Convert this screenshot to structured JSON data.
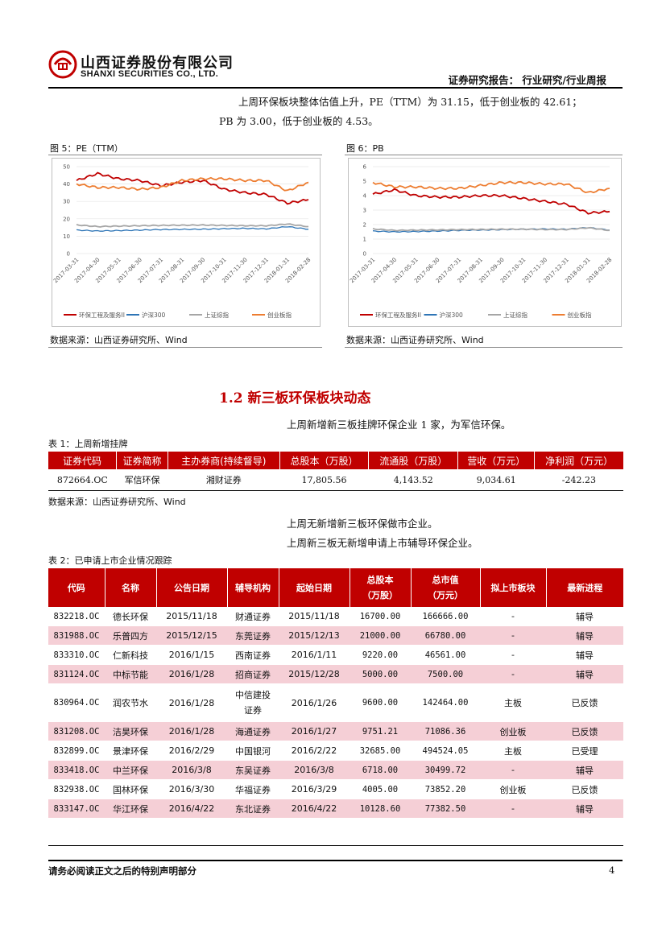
{
  "header": {
    "company_cn": "山西证券股份有限公司",
    "company_en": "SHANXI SECURITIES CO., LTD.",
    "report_type": "证券研究报告：  行业研究/行业周报"
  },
  "intro": {
    "line1": "上周环保板块整体估值上升，PE（TTM）为 31.15，低于创业板的 42.61；",
    "line2": "PB 为 3.00，低于创业板的 4.53。"
  },
  "figures": [
    {
      "title": "图 5：PE（TTM）",
      "source": "数据来源：山西证券研究所、Wind"
    },
    {
      "title": "图 6：PB",
      "source": "数据来源：山西证券研究所、Wind"
    }
  ],
  "chart_data": [
    {
      "type": "line",
      "title": "",
      "ylim": [
        0,
        50
      ],
      "yticks": [
        "0",
        "10",
        "20",
        "30",
        "40",
        "50"
      ],
      "x": [
        "2017-03-31",
        "2017-04-30",
        "2017-05-31",
        "2017-06-30",
        "2017-07-31",
        "2017-08-31",
        "2017-09-30",
        "2017-10-31",
        "2017-11-30",
        "2017-12-31",
        "2018-01-31",
        "2018-02-28"
      ],
      "series": [
        {
          "name": "环保工程及服务II",
          "color": "#c00000",
          "values": [
            42,
            46,
            43,
            42,
            39,
            41,
            42,
            37,
            35,
            34,
            29,
            31
          ]
        },
        {
          "name": "沪深300",
          "color": "#2e75b6",
          "values": [
            13.5,
            13,
            13.2,
            13.5,
            13.8,
            13.9,
            14,
            14.3,
            14.5,
            14.2,
            15.5,
            14
          ]
        },
        {
          "name": "上证综指",
          "color": "#a6a6a6",
          "values": [
            16.5,
            15.5,
            15.8,
            16,
            16.2,
            16.3,
            16.4,
            16.2,
            16,
            16,
            17,
            15.5
          ]
        },
        {
          "name": "创业板指",
          "color": "#ed7d31",
          "values": [
            40,
            38,
            38,
            37,
            38,
            42,
            43,
            43,
            42,
            42,
            36,
            41
          ]
        }
      ]
    },
    {
      "type": "line",
      "title": "",
      "ylim": [
        0,
        6
      ],
      "yticks": [
        "0",
        "1",
        "2",
        "3",
        "4",
        "5",
        "6"
      ],
      "x": [
        "2017-03-31",
        "2017-04-30",
        "2017-05-31",
        "2017-06-30",
        "2017-07-31",
        "2017-08-31",
        "2017-09-30",
        "2017-10-31",
        "2017-11-30",
        "2017-12-31",
        "2018-01-31",
        "2018-02-28"
      ],
      "series": [
        {
          "name": "环保工程及服务II",
          "color": "#c00000",
          "values": [
            4.1,
            4.4,
            4.0,
            3.9,
            3.9,
            4.0,
            4.0,
            3.8,
            3.6,
            3.4,
            2.8,
            2.9
          ]
        },
        {
          "name": "沪深300",
          "color": "#2e75b6",
          "values": [
            1.55,
            1.5,
            1.52,
            1.55,
            1.6,
            1.62,
            1.65,
            1.68,
            1.7,
            1.68,
            1.8,
            1.62
          ]
        },
        {
          "name": "上证综指",
          "color": "#a6a6a6",
          "values": [
            1.7,
            1.6,
            1.62,
            1.63,
            1.65,
            1.66,
            1.68,
            1.68,
            1.66,
            1.66,
            1.78,
            1.6
          ]
        },
        {
          "name": "创业板指",
          "color": "#ed7d31",
          "values": [
            4.9,
            4.6,
            4.6,
            4.5,
            4.5,
            4.7,
            4.9,
            4.9,
            4.8,
            4.8,
            4.2,
            4.5
          ]
        }
      ]
    }
  ],
  "section": {
    "title": "1.2  新三板环保板块动态",
    "line1": "上周新增新三板挂牌环保企业 1 家，为军信环保。",
    "line2": "上周无新增新三板环保做市企业。",
    "line3": "上周新三板无新增申请上市辅导环保企业。"
  },
  "table1": {
    "title": "表 1：上周新增挂牌",
    "headers": [
      "证券代码",
      "证券简称",
      "主办券商(持续督导)",
      "总股本（万股）",
      "流通股（万股）",
      "营收（万元）",
      "净利润（万元）"
    ],
    "rows": [
      [
        "872664.OC",
        "军信环保",
        "湘财证券",
        "17,805.56",
        "4,143.52",
        "9,034.61",
        "-242.23"
      ]
    ],
    "source": "数据来源：山西证券研究所、Wind"
  },
  "table2": {
    "title": "表 2：已申请上市企业情况跟踪",
    "headers": [
      "代码",
      "名称",
      "公告日期",
      "辅导机构",
      "起始日期",
      "总股本（万股）",
      "总市值（万元）",
      "拟上市板块",
      "最新进程"
    ],
    "header_lines": [
      [
        "代码"
      ],
      [
        "名称"
      ],
      [
        "公告日期"
      ],
      [
        "辅导机构"
      ],
      [
        "起始日期"
      ],
      [
        "总股本",
        "（万股）"
      ],
      [
        "总市值",
        "（万元）"
      ],
      [
        "拟上市板块"
      ],
      [
        "最新进程"
      ]
    ],
    "rows": [
      [
        "832218.OC",
        "德长环保",
        "2015/11/18",
        "财通证券",
        "2015/11/18",
        "16700.00",
        "166666.00",
        "-",
        "辅导"
      ],
      [
        "831988.OC",
        "乐普四方",
        "2015/12/15",
        "东莞证券",
        "2015/12/13",
        "21000.00",
        "66780.00",
        "-",
        "辅导"
      ],
      [
        "833310.OC",
        "仁新科技",
        "2016/1/15",
        "西南证券",
        "2016/1/11",
        "9220.00",
        "46561.00",
        "-",
        "辅导"
      ],
      [
        "831124.OC",
        "中标节能",
        "2016/1/28",
        "招商证券",
        "2015/12/28",
        "5000.00",
        "7500.00",
        "-",
        "辅导"
      ],
      [
        "830964.OC",
        "润农节水",
        "2016/1/28",
        "中信建投证券",
        "2016/1/26",
        "9600.00",
        "142464.00",
        "主板",
        "已反馈"
      ],
      [
        "831208.OC",
        "洁昊环保",
        "2016/1/28",
        "海通证券",
        "2016/1/27",
        "9751.21",
        "71086.36",
        "创业板",
        "已反馈"
      ],
      [
        "832899.OC",
        "景津环保",
        "2016/2/29",
        "中国银河",
        "2016/2/22",
        "32685.00",
        "494524.05",
        "主板",
        "已受理"
      ],
      [
        "833418.OC",
        "中兰环保",
        "2016/3/8",
        "东吴证券",
        "2016/3/8",
        "6718.00",
        "30499.72",
        "-",
        "辅导"
      ],
      [
        "832938.OC",
        "国林环保",
        "2016/3/30",
        "华福证券",
        "2016/3/29",
        "4005.00",
        "73852.20",
        "创业板",
        "已反馈"
      ],
      [
        "833147.OC",
        "华江环保",
        "2016/4/22",
        "东北证券",
        "2016/4/22",
        "10128.60",
        "77382.50",
        "-",
        "辅导"
      ]
    ]
  },
  "footer": {
    "disclaimer": "请务必阅读正文之后的特别声明部分",
    "page": "4"
  }
}
